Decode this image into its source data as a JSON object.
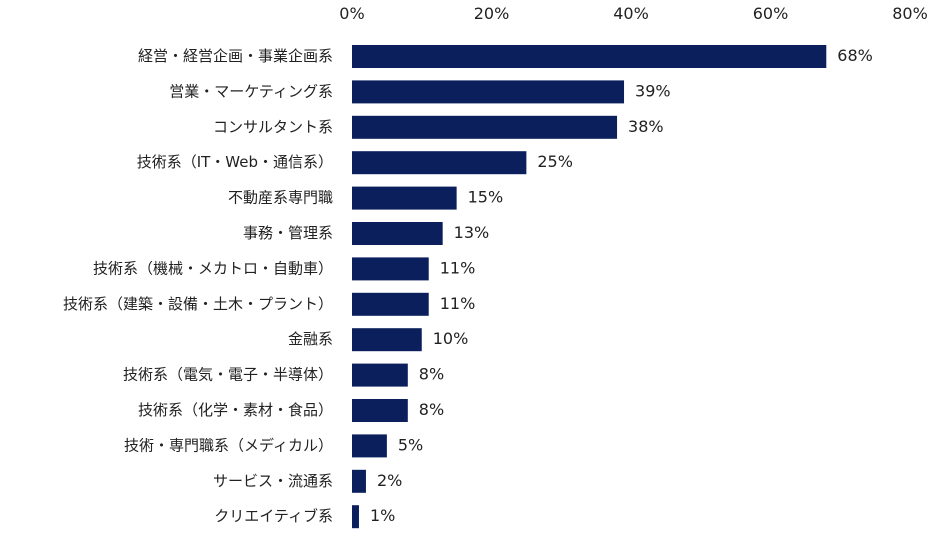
{
  "chart_data": {
    "type": "bar",
    "orientation": "horizontal",
    "categories": [
      "経営・経営企画・事業企画系",
      "営業・マーケティング系",
      "コンサルタント系",
      "技術系（IT・Web・通信系）",
      "不動産系専門職",
      "事務・管理系",
      "技術系（機械・メカトロ・自動車）",
      "技術系（建築・設備・土木・プラント）",
      "金融系",
      "技術系（電気・電子・半導体）",
      "技術系（化学・素材・食品）",
      "技術・専門職系（メディカル）",
      "サービス・流通系",
      "クリエイティブ系"
    ],
    "values": [
      68,
      39,
      38,
      25,
      15,
      13,
      11,
      11,
      10,
      8,
      8,
      5,
      2,
      1
    ],
    "value_labels": [
      "68%",
      "39%",
      "38%",
      "25%",
      "15%",
      "13%",
      "11%",
      "11%",
      "10%",
      "8%",
      "8%",
      "5%",
      "2%",
      "1%"
    ],
    "x_ticks": [
      0,
      20,
      40,
      60,
      80
    ],
    "x_tick_labels": [
      "0%",
      "20%",
      "40%",
      "60%",
      "80%"
    ],
    "xlim": [
      0,
      80
    ],
    "axis_position": "top",
    "grid": false,
    "legend": "none",
    "bar_color": "#0b1f5c",
    "title": "",
    "xlabel": "",
    "ylabel": ""
  }
}
